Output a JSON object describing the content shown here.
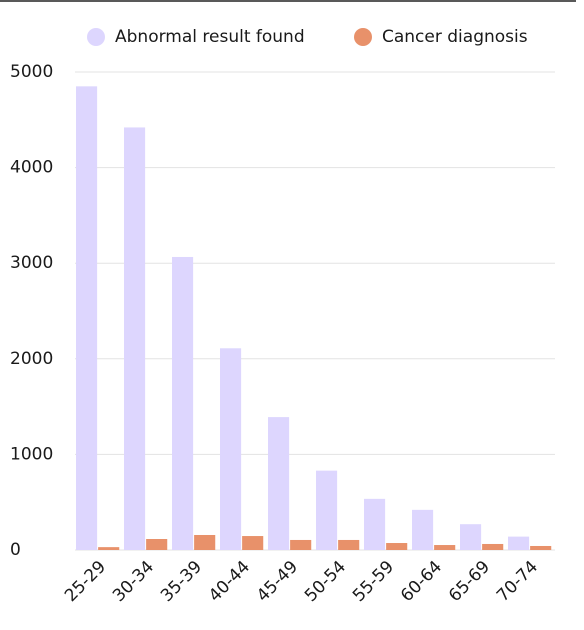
{
  "chart_data": {
    "type": "bar",
    "categories": [
      "25-29",
      "30-34",
      "35-39",
      "40-44",
      "45-49",
      "50-54",
      "55-59",
      "60-64",
      "65-69",
      "70-74"
    ],
    "series": [
      {
        "name": "Abnormal result found",
        "color": "#ddd6fe",
        "values": [
          4850,
          4420,
          3065,
          2110,
          1390,
          830,
          535,
          420,
          270,
          140
        ]
      },
      {
        "name": "Cancer diagnosis",
        "color": "#e8916a",
        "values": [
          30,
          115,
          157,
          146,
          105,
          105,
          73,
          52,
          63,
          42
        ]
      }
    ],
    "ylim": [
      0,
      5000
    ],
    "yticks": [
      0,
      1000,
      2000,
      3000,
      4000,
      5000
    ],
    "grid": true,
    "legend": "top"
  }
}
